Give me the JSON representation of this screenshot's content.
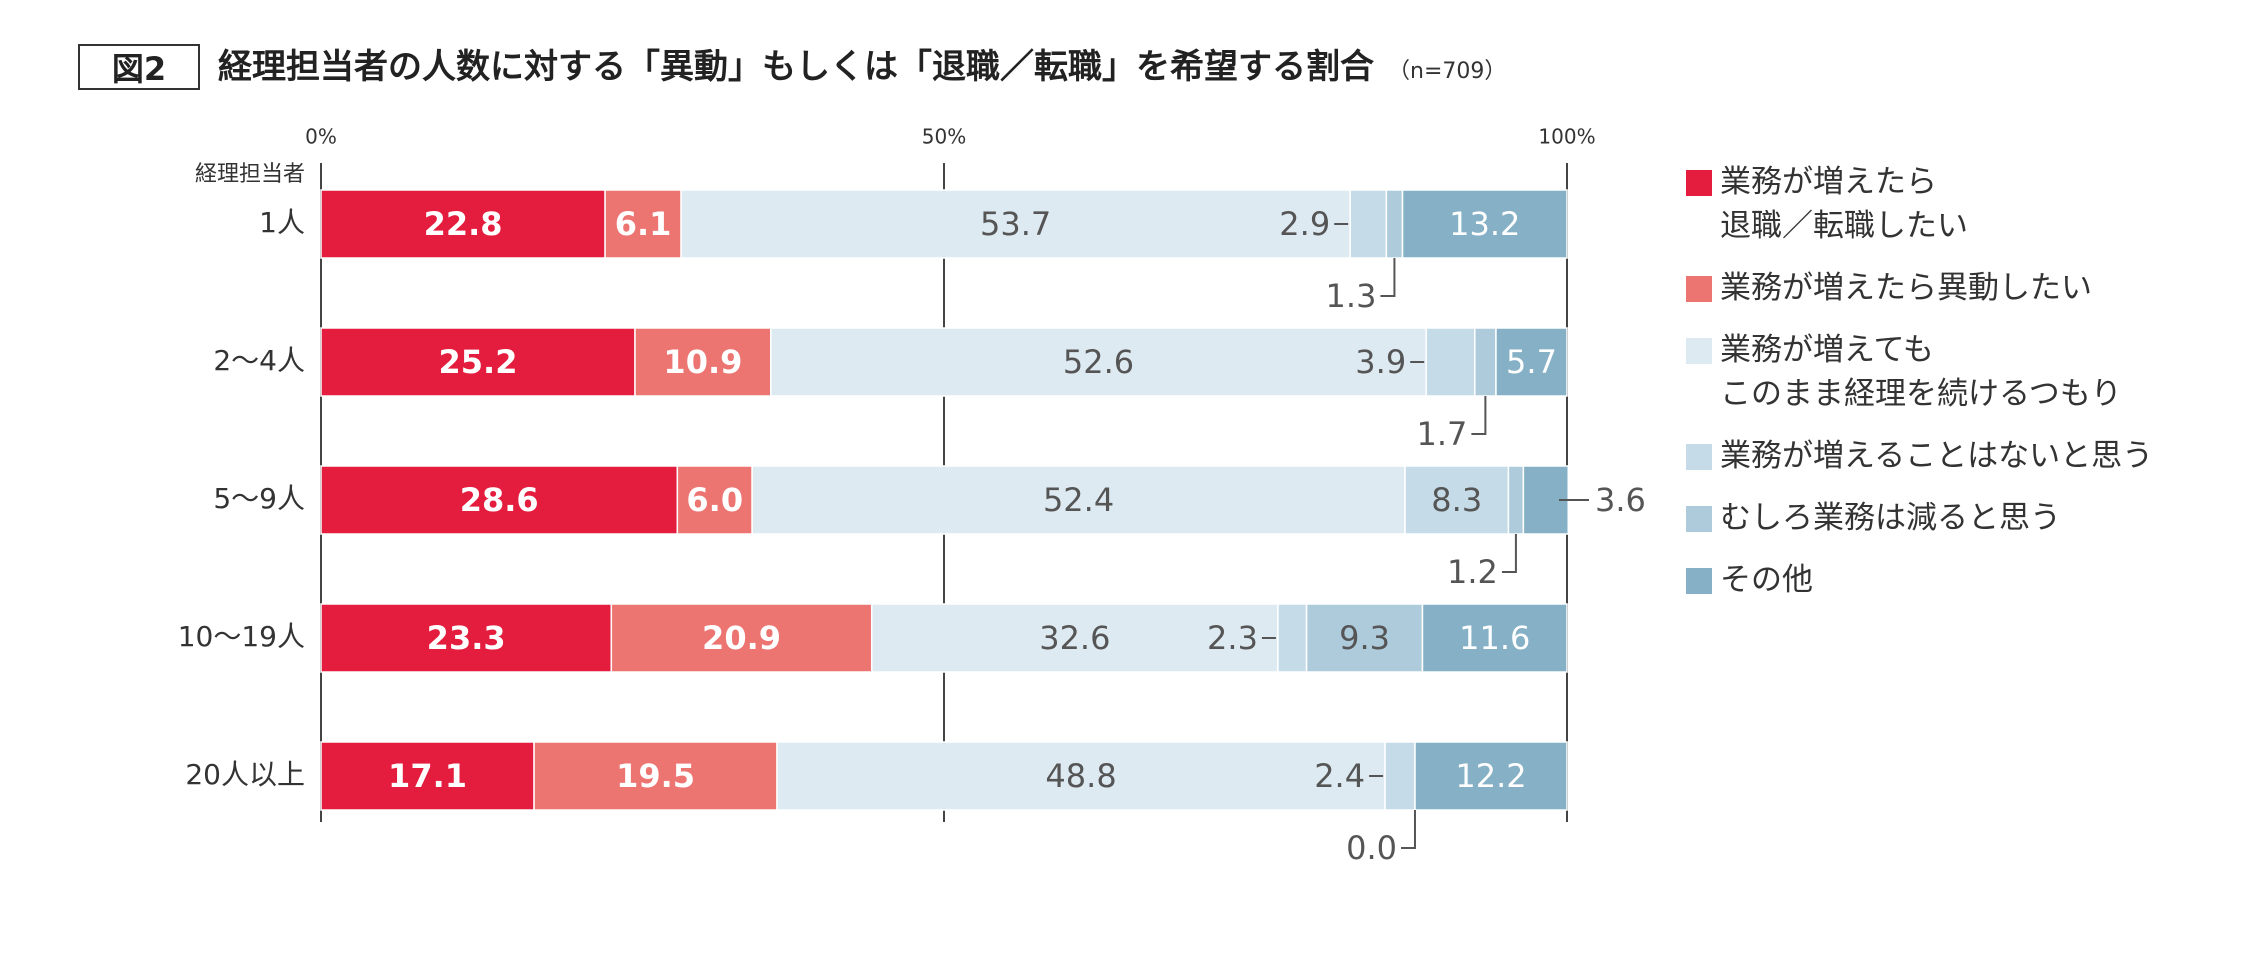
{
  "figure": {
    "number_label": "図2",
    "title": "経理担当者の人数に対する「異動」もしくは「退職／転職」を希望する割合",
    "sample": "（n=709）"
  },
  "chart_data": {
    "type": "bar",
    "orientation": "horizontal",
    "stacked": true,
    "percent_stacked": true,
    "category_header": "経理担当者",
    "categories": [
      "1人",
      "2〜4人",
      "5〜9人",
      "10〜19人",
      "20人以上"
    ],
    "axis_ticks": [
      "0%",
      "50%",
      "100%"
    ],
    "xlim": [
      0,
      100
    ],
    "legend_position": "right",
    "series": [
      {
        "name": "業務が増えたら\n退職／転職したい",
        "color": "#e41c3d",
        "label_color": "#ffffff",
        "values": [
          22.8,
          25.2,
          28.6,
          23.3,
          17.1
        ]
      },
      {
        "name": "業務が増えたら異動したい",
        "color": "#ec7572",
        "label_color": "#ffffff",
        "values": [
          6.1,
          10.9,
          6.0,
          20.9,
          19.5
        ]
      },
      {
        "name": "業務が増えても\nこのまま経理を続けるつもり",
        "color": "#deeaf2",
        "label_color": "#555555",
        "values": [
          53.7,
          52.6,
          52.4,
          32.6,
          48.8
        ]
      },
      {
        "name": "業務が増えることはないと思う",
        "color": "#c5dbe7",
        "label_color": "#555555",
        "values": [
          2.9,
          3.9,
          8.3,
          2.3,
          2.4
        ]
      },
      {
        "name": "むしろ業務は減ると思う",
        "color": "#aecbdc",
        "label_color": "#555555",
        "values": [
          1.3,
          1.7,
          1.2,
          9.3,
          0.0
        ]
      },
      {
        "name": "その他",
        "color": "#85b0c6",
        "label_color": "#ffffff",
        "values": [
          13.2,
          5.7,
          3.6,
          11.6,
          12.2
        ]
      }
    ],
    "value_labels": [
      [
        "22.8",
        "6.1",
        "53.7",
        "2.9",
        "1.3",
        "13.2"
      ],
      [
        "25.2",
        "10.9",
        "52.6",
        "3.9",
        "1.7",
        "5.7"
      ],
      [
        "28.6",
        "6.0",
        "52.4",
        "8.3",
        "1.2",
        "3.6"
      ],
      [
        "23.3",
        "20.9",
        "32.6",
        "2.3",
        "9.3",
        "11.6"
      ],
      [
        "17.1",
        "19.5",
        "48.8",
        "2.4",
        "0.0",
        "12.2"
      ]
    ]
  }
}
